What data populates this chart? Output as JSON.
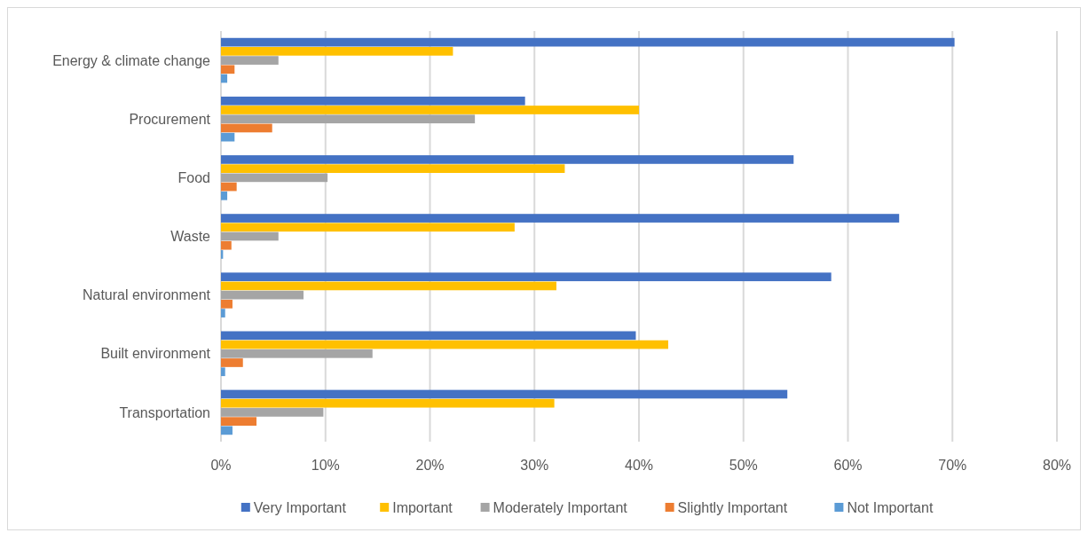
{
  "chart_data": {
    "type": "bar",
    "orientation": "horizontal",
    "categories": [
      "Energy & climate change",
      "Procurement",
      "Food",
      "Waste",
      "Natural environment",
      "Built environment",
      "Transportation"
    ],
    "series": [
      {
        "name": "Very Important",
        "color": "#4472c4",
        "values": [
          70.2,
          29.1,
          54.8,
          64.9,
          58.4,
          39.7,
          54.2
        ]
      },
      {
        "name": "Important",
        "color": "#ffc000",
        "values": [
          22.2,
          40.0,
          32.9,
          28.1,
          32.1,
          42.8,
          31.9
        ]
      },
      {
        "name": "Moderately Important",
        "color": "#a5a5a5",
        "values": [
          5.5,
          24.3,
          10.2,
          5.5,
          7.9,
          14.5,
          9.8
        ]
      },
      {
        "name": "Slightly Important",
        "color": "#ed7d31",
        "values": [
          1.3,
          4.9,
          1.5,
          1.0,
          1.1,
          2.1,
          3.4
        ]
      },
      {
        "name": "Not Important",
        "color": "#5b9bd5",
        "values": [
          0.6,
          1.3,
          0.6,
          0.2,
          0.4,
          0.4,
          1.1
        ]
      }
    ],
    "xlim": [
      0,
      80
    ],
    "xticks": [
      {
        "value": 0,
        "label": "0%"
      },
      {
        "value": 10,
        "label": "10%"
      },
      {
        "value": 20,
        "label": "20%"
      },
      {
        "value": 30,
        "label": "30%"
      },
      {
        "value": 40,
        "label": "40%"
      },
      {
        "value": 50,
        "label": "50%"
      },
      {
        "value": 60,
        "label": "60%"
      },
      {
        "value": 70,
        "label": "70%"
      },
      {
        "value": 80,
        "label": "80%"
      }
    ],
    "grid": "x",
    "legend": "bottom"
  }
}
